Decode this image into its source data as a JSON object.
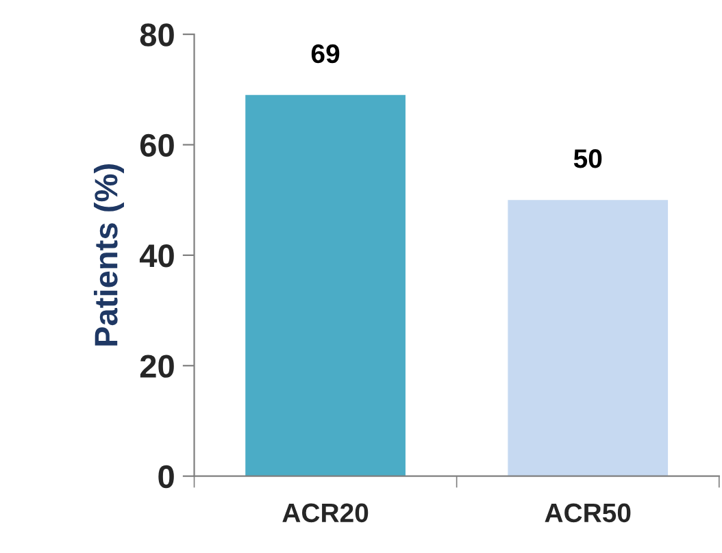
{
  "chart_data": {
    "type": "bar",
    "ylabel": "Patients (%)",
    "categories": [
      "ACR20",
      "ACR50"
    ],
    "values": [
      69,
      50
    ],
    "colors": [
      "#4bacc6",
      "#c6d9f1"
    ],
    "ylim": [
      0,
      80
    ],
    "yticks": [
      0,
      20,
      40,
      60,
      80
    ],
    "data_labels": true,
    "grid": false,
    "legend": false
  }
}
